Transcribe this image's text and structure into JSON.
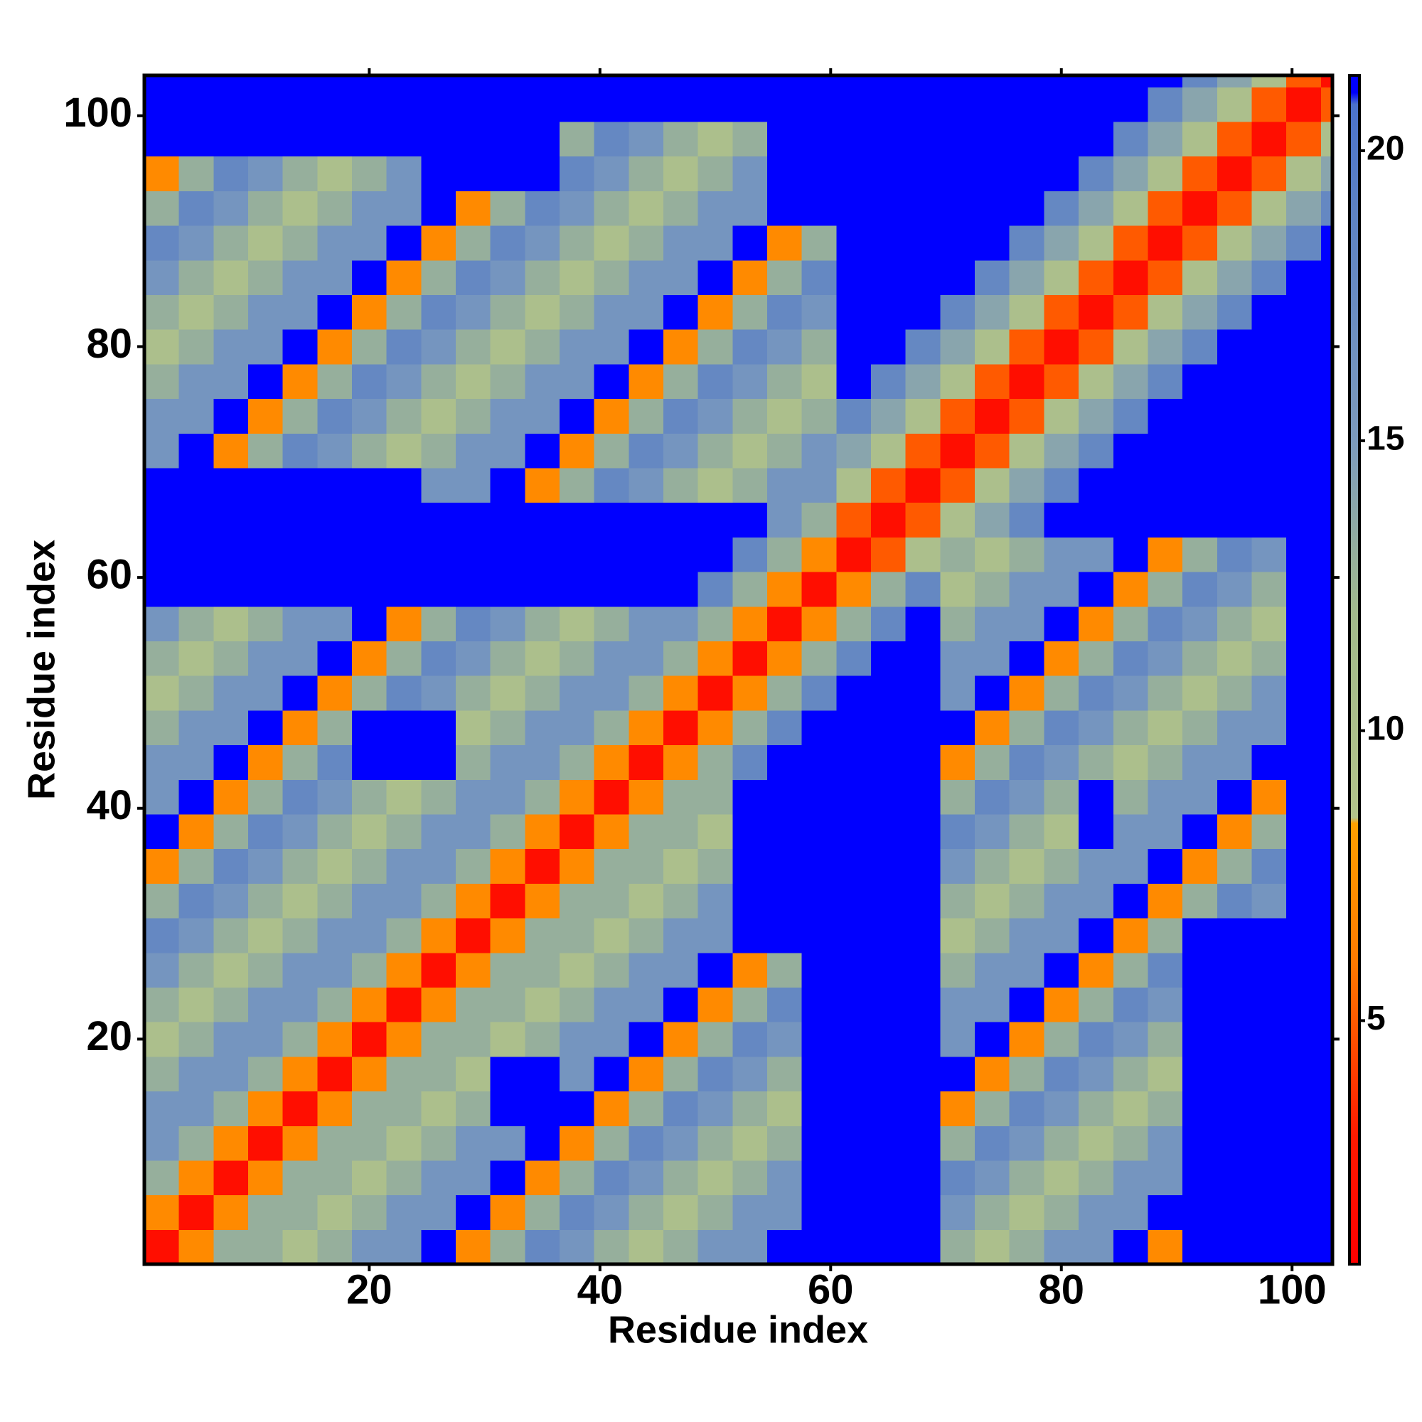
{
  "chart_data": {
    "type": "heatmap",
    "xlabel": "Residue index",
    "ylabel": "Residue index",
    "x": [
      2,
      5,
      8,
      11,
      14,
      17,
      20,
      23,
      26,
      29,
      32,
      35,
      38,
      41,
      44,
      47,
      50,
      53,
      56,
      59,
      62,
      65,
      68,
      71,
      74,
      77,
      80,
      83,
      86,
      89,
      92,
      95,
      98,
      101,
      104
    ],
    "y": [
      2,
      5,
      8,
      11,
      14,
      17,
      20,
      23,
      26,
      29,
      32,
      35,
      38,
      41,
      44,
      47,
      50,
      53,
      56,
      59,
      62,
      65,
      68,
      71,
      74,
      77,
      80,
      83,
      86,
      89,
      92,
      95,
      98,
      101,
      104
    ],
    "z": [
      [
        2,
        7,
        13,
        13,
        10,
        13,
        16,
        16,
        21,
        7,
        13,
        18,
        16,
        13,
        10,
        13,
        16,
        16,
        21,
        21,
        21,
        21,
        21,
        13,
        10,
        13,
        16,
        16,
        21,
        7,
        21,
        21,
        21,
        21,
        21
      ],
      [
        7,
        2,
        7,
        13,
        13,
        10,
        13,
        16,
        16,
        21,
        7,
        13,
        18,
        16,
        13,
        10,
        13,
        16,
        16,
        21,
        21,
        21,
        21,
        16,
        13,
        10,
        13,
        16,
        16,
        21,
        21,
        21,
        21,
        21,
        21
      ],
      [
        13,
        7,
        2,
        7,
        13,
        13,
        10,
        13,
        16,
        16,
        21,
        7,
        13,
        18,
        16,
        13,
        10,
        13,
        16,
        21,
        21,
        21,
        21,
        18,
        16,
        13,
        10,
        13,
        16,
        16,
        21,
        21,
        21,
        21,
        21
      ],
      [
        16,
        13,
        7,
        2,
        7,
        13,
        13,
        10,
        13,
        16,
        16,
        21,
        7,
        13,
        18,
        16,
        13,
        10,
        13,
        21,
        21,
        21,
        21,
        13,
        18,
        16,
        13,
        10,
        13,
        16,
        21,
        21,
        21,
        21,
        21
      ],
      [
        16,
        16,
        13,
        7,
        2,
        7,
        13,
        13,
        10,
        13,
        21,
        21,
        21,
        7,
        13,
        18,
        16,
        13,
        10,
        21,
        21,
        21,
        21,
        7,
        13,
        18,
        16,
        13,
        10,
        13,
        21,
        21,
        21,
        21,
        21
      ],
      [
        13,
        16,
        16,
        13,
        7,
        2,
        7,
        13,
        13,
        10,
        21,
        21,
        16,
        21,
        7,
        13,
        18,
        16,
        13,
        21,
        21,
        21,
        21,
        21,
        7,
        13,
        18,
        16,
        13,
        10,
        21,
        21,
        21,
        21,
        21
      ],
      [
        10,
        13,
        16,
        16,
        13,
        7,
        2,
        7,
        13,
        13,
        10,
        13,
        16,
        16,
        21,
        7,
        13,
        18,
        16,
        21,
        21,
        21,
        21,
        16,
        21,
        7,
        13,
        18,
        16,
        13,
        21,
        21,
        21,
        21,
        21
      ],
      [
        13,
        10,
        13,
        16,
        16,
        13,
        7,
        2,
        7,
        13,
        13,
        10,
        13,
        16,
        16,
        21,
        7,
        13,
        18,
        21,
        21,
        21,
        21,
        16,
        16,
        21,
        7,
        13,
        18,
        16,
        21,
        21,
        21,
        21,
        21
      ],
      [
        16,
        13,
        10,
        13,
        16,
        16,
        13,
        7,
        2,
        7,
        13,
        13,
        10,
        13,
        16,
        16,
        21,
        7,
        13,
        21,
        21,
        21,
        21,
        13,
        16,
        16,
        21,
        7,
        13,
        18,
        21,
        21,
        21,
        21,
        21
      ],
      [
        18,
        16,
        13,
        10,
        13,
        16,
        16,
        13,
        7,
        2,
        7,
        13,
        13,
        10,
        13,
        16,
        16,
        21,
        21,
        21,
        21,
        21,
        21,
        10,
        13,
        16,
        16,
        21,
        7,
        13,
        21,
        21,
        21,
        21,
        21
      ],
      [
        13,
        18,
        16,
        13,
        10,
        13,
        16,
        16,
        13,
        7,
        2,
        7,
        13,
        13,
        10,
        13,
        16,
        21,
        21,
        21,
        21,
        21,
        21,
        13,
        10,
        13,
        16,
        16,
        21,
        7,
        13,
        18,
        16,
        21,
        21
      ],
      [
        7,
        13,
        18,
        16,
        13,
        10,
        13,
        16,
        16,
        13,
        7,
        2,
        7,
        13,
        13,
        10,
        13,
        21,
        21,
        21,
        21,
        21,
        21,
        16,
        13,
        10,
        13,
        16,
        16,
        21,
        7,
        13,
        18,
        21,
        21
      ],
      [
        21,
        7,
        13,
        18,
        16,
        13,
        10,
        13,
        16,
        16,
        13,
        7,
        2,
        7,
        13,
        13,
        10,
        21,
        21,
        21,
        21,
        21,
        21,
        18,
        16,
        13,
        10,
        21,
        16,
        16,
        21,
        7,
        13,
        21,
        21
      ],
      [
        16,
        21,
        7,
        13,
        18,
        16,
        13,
        10,
        13,
        16,
        16,
        13,
        7,
        2,
        7,
        13,
        13,
        21,
        21,
        21,
        21,
        21,
        21,
        13,
        18,
        16,
        13,
        21,
        13,
        16,
        16,
        21,
        7,
        21,
        21
      ],
      [
        16,
        16,
        21,
        7,
        13,
        18,
        21,
        21,
        21,
        13,
        16,
        16,
        13,
        7,
        2,
        7,
        13,
        18,
        21,
        21,
        21,
        21,
        21,
        7,
        13,
        18,
        16,
        13,
        10,
        13,
        16,
        16,
        21,
        21,
        21
      ],
      [
        13,
        16,
        16,
        21,
        7,
        13,
        21,
        21,
        21,
        10,
        13,
        16,
        16,
        13,
        7,
        2,
        7,
        13,
        18,
        21,
        21,
        21,
        21,
        21,
        7,
        13,
        18,
        16,
        13,
        10,
        13,
        16,
        16,
        21,
        21
      ],
      [
        10,
        13,
        16,
        16,
        21,
        7,
        13,
        18,
        16,
        13,
        10,
        13,
        16,
        16,
        13,
        7,
        2,
        7,
        13,
        18,
        21,
        21,
        21,
        16,
        21,
        7,
        13,
        18,
        16,
        13,
        10,
        13,
        16,
        21,
        21
      ],
      [
        13,
        10,
        13,
        16,
        16,
        21,
        7,
        13,
        18,
        16,
        13,
        10,
        13,
        16,
        16,
        13,
        7,
        2,
        7,
        13,
        18,
        21,
        21,
        16,
        16,
        21,
        7,
        13,
        18,
        16,
        13,
        10,
        13,
        21,
        21
      ],
      [
        16,
        13,
        10,
        13,
        16,
        16,
        21,
        7,
        13,
        18,
        16,
        13,
        10,
        13,
        16,
        16,
        13,
        7,
        2,
        7,
        13,
        18,
        21,
        13,
        16,
        16,
        21,
        7,
        13,
        18,
        16,
        13,
        10,
        21,
        21
      ],
      [
        21,
        21,
        21,
        21,
        21,
        21,
        21,
        21,
        21,
        21,
        21,
        21,
        21,
        21,
        21,
        21,
        18,
        13,
        7,
        2,
        7,
        13,
        18,
        10,
        13,
        16,
        16,
        21,
        7,
        13,
        18,
        16,
        13,
        21,
        21
      ],
      [
        21,
        21,
        21,
        21,
        21,
        21,
        21,
        21,
        21,
        21,
        21,
        21,
        21,
        21,
        21,
        21,
        21,
        18,
        13,
        7,
        2,
        5,
        10,
        13,
        10,
        13,
        16,
        16,
        21,
        7,
        13,
        18,
        16,
        21,
        21
      ],
      [
        21,
        21,
        21,
        21,
        21,
        21,
        21,
        21,
        21,
        21,
        21,
        21,
        21,
        21,
        21,
        21,
        21,
        21,
        16,
        13,
        5,
        2,
        5,
        10,
        14,
        18,
        21,
        21,
        21,
        21,
        21,
        21,
        21,
        21,
        21
      ],
      [
        21,
        21,
        21,
        21,
        21,
        21,
        21,
        21,
        16,
        16,
        21,
        7,
        13,
        18,
        16,
        13,
        10,
        13,
        16,
        16,
        10,
        5,
        2,
        5,
        10,
        14,
        18,
        21,
        21,
        21,
        21,
        21,
        21,
        21,
        21
      ],
      [
        16,
        21,
        7,
        13,
        18,
        16,
        13,
        10,
        13,
        16,
        16,
        21,
        7,
        13,
        18,
        16,
        13,
        10,
        13,
        16,
        14,
        10,
        5,
        2,
        5,
        10,
        14,
        18,
        21,
        21,
        21,
        21,
        21,
        21,
        21
      ],
      [
        16,
        16,
        21,
        7,
        13,
        18,
        16,
        13,
        10,
        13,
        16,
        16,
        21,
        7,
        13,
        18,
        16,
        13,
        10,
        13,
        18,
        14,
        10,
        5,
        2,
        5,
        10,
        14,
        18,
        21,
        21,
        21,
        21,
        21,
        21
      ],
      [
        13,
        16,
        16,
        21,
        7,
        13,
        18,
        16,
        13,
        10,
        13,
        16,
        16,
        21,
        7,
        13,
        18,
        16,
        13,
        10,
        21,
        18,
        14,
        10,
        5,
        2,
        5,
        10,
        14,
        18,
        21,
        21,
        21,
        21,
        21
      ],
      [
        10,
        13,
        16,
        16,
        21,
        7,
        13,
        18,
        16,
        13,
        10,
        13,
        16,
        16,
        21,
        7,
        13,
        18,
        16,
        13,
        21,
        21,
        18,
        14,
        10,
        5,
        2,
        5,
        10,
        14,
        18,
        21,
        21,
        21,
        21
      ],
      [
        13,
        10,
        13,
        16,
        16,
        21,
        7,
        13,
        18,
        16,
        13,
        10,
        13,
        16,
        16,
        21,
        7,
        13,
        18,
        16,
        21,
        21,
        21,
        18,
        14,
        10,
        5,
        2,
        5,
        10,
        14,
        18,
        21,
        21,
        21
      ],
      [
        16,
        13,
        10,
        13,
        16,
        16,
        21,
        7,
        13,
        18,
        16,
        13,
        10,
        13,
        16,
        16,
        21,
        7,
        13,
        18,
        21,
        21,
        21,
        21,
        18,
        14,
        10,
        5,
        2,
        5,
        10,
        14,
        18,
        21,
        21
      ],
      [
        18,
        16,
        13,
        10,
        13,
        16,
        16,
        21,
        7,
        13,
        18,
        16,
        13,
        10,
        13,
        16,
        16,
        21,
        7,
        13,
        21,
        21,
        21,
        21,
        21,
        18,
        14,
        10,
        5,
        2,
        5,
        10,
        14,
        18,
        21
      ],
      [
        13,
        18,
        16,
        13,
        10,
        13,
        16,
        16,
        21,
        7,
        13,
        18,
        16,
        13,
        10,
        13,
        16,
        16,
        21,
        21,
        21,
        21,
        21,
        21,
        21,
        21,
        18,
        14,
        10,
        5,
        2,
        5,
        10,
        14,
        18
      ],
      [
        7,
        13,
        18,
        16,
        13,
        10,
        13,
        16,
        21,
        21,
        21,
        21,
        18,
        16,
        13,
        10,
        13,
        16,
        21,
        21,
        21,
        21,
        21,
        21,
        21,
        21,
        21,
        18,
        14,
        10,
        5,
        2,
        5,
        10,
        14
      ],
      [
        21,
        21,
        21,
        21,
        21,
        21,
        21,
        21,
        21,
        21,
        21,
        21,
        13,
        18,
        16,
        13,
        10,
        13,
        21,
        21,
        21,
        21,
        21,
        21,
        21,
        21,
        21,
        21,
        18,
        14,
        10,
        5,
        2,
        5,
        10
      ],
      [
        21,
        21,
        21,
        21,
        21,
        21,
        21,
        21,
        21,
        21,
        21,
        21,
        21,
        21,
        21,
        21,
        21,
        21,
        21,
        21,
        21,
        21,
        21,
        21,
        21,
        21,
        21,
        21,
        21,
        18,
        14,
        10,
        5,
        2,
        5
      ],
      [
        21,
        21,
        21,
        21,
        21,
        21,
        21,
        21,
        21,
        21,
        21,
        21,
        21,
        21,
        21,
        21,
        21,
        21,
        21,
        21,
        21,
        21,
        21,
        21,
        21,
        21,
        21,
        21,
        21,
        21,
        18,
        14,
        10,
        5,
        2
      ]
    ],
    "xlim": [
      0.5,
      103.5
    ],
    "ylim": [
      0.5,
      103.5
    ],
    "xticks": [
      20,
      40,
      60,
      80,
      100
    ],
    "yticks": [
      20,
      40,
      60,
      80,
      100
    ],
    "colorbar": {
      "lim": [
        0.8,
        21.3
      ],
      "ticks": [
        5,
        10,
        15,
        20
      ]
    },
    "colorscale": [
      [
        0.8,
        "#ff0000"
      ],
      [
        3,
        "#ff1a00"
      ],
      [
        6,
        "#ff7a00"
      ],
      [
        8.4,
        "#ffa000"
      ],
      [
        8.5,
        "#b3c48c"
      ],
      [
        12,
        "#a2b98c"
      ],
      [
        15,
        "#7d9bbd"
      ],
      [
        19,
        "#5d82c4"
      ],
      [
        20.8,
        "#4b72cc"
      ],
      [
        21,
        "#0000ff"
      ]
    ]
  }
}
